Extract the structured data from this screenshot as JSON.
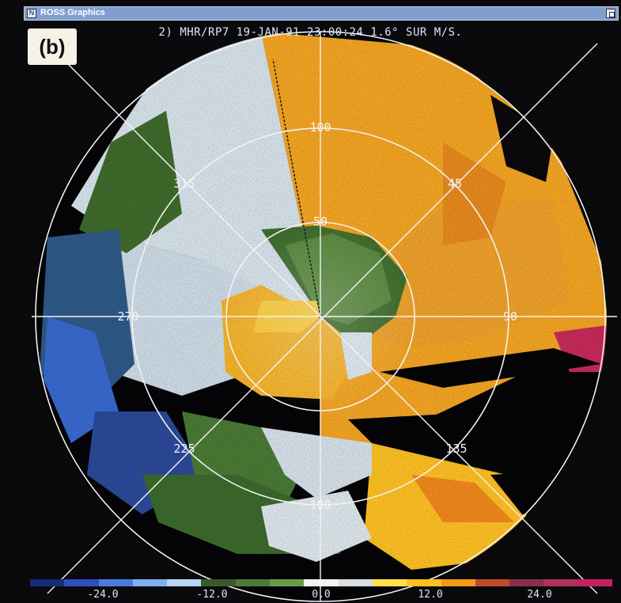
{
  "window": {
    "title": "ROSS Graphics",
    "close_glyph": "N"
  },
  "panel_label": "(b)",
  "header": "2) MHR/RP7  19-JAN-91 23:00:24 1.6° SUR M/S.",
  "rings": {
    "range_labels": [
      "50",
      "100"
    ],
    "azimuth_labels": [
      "315",
      "45",
      "270",
      "90",
      "225",
      "135",
      "180"
    ]
  },
  "color_scale": {
    "colors": [
      "#1a2a7a",
      "#2d4fbf",
      "#4a7ae0",
      "#7fb0ee",
      "#b8d6f0",
      "#3a5a2a",
      "#4d7a35",
      "#6a9a48",
      "#f2f2f2",
      "#d8dde0",
      "#ffe04a",
      "#ffc020",
      "#f59a18",
      "#c04a2a",
      "#8a2f4a",
      "#b0305a",
      "#c82060"
    ],
    "tick_labels": [
      "-24.0",
      "-12.0",
      "0.0",
      "12.0",
      "24.0"
    ],
    "tick_values": [
      -24,
      -12,
      0,
      12,
      24
    ],
    "range": [
      -32,
      32
    ]
  }
}
